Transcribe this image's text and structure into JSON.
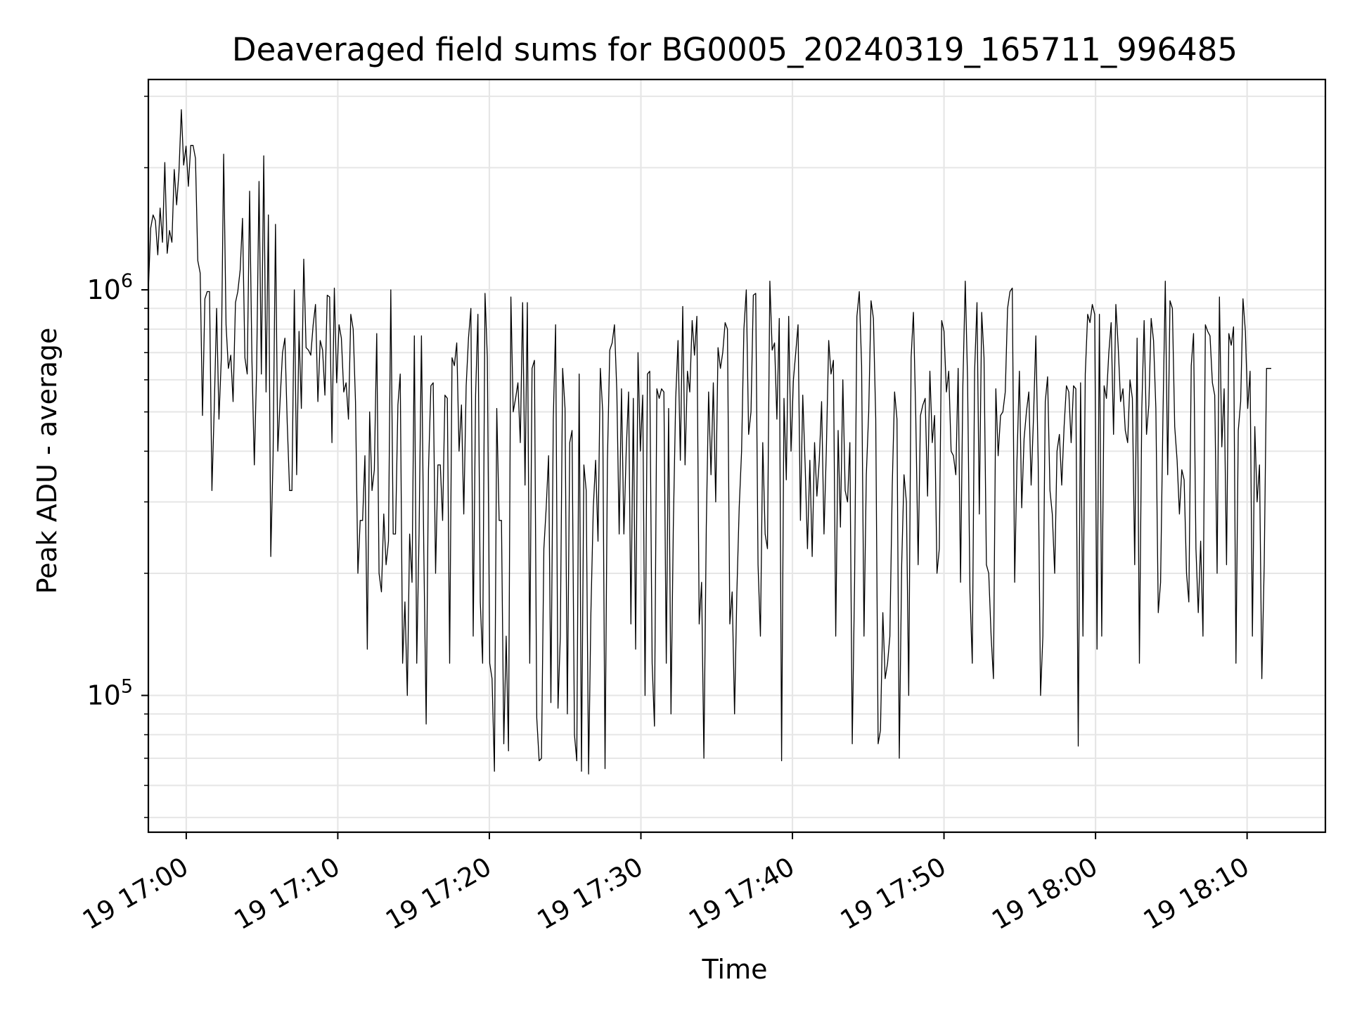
{
  "chart_data": {
    "type": "line",
    "title": "Deaveraged field sums for BG0005_20240319_165711_996485",
    "xlabel": "Time",
    "ylabel": "Peak ADU - average",
    "yscale": "log",
    "ylim": [
      46000,
      3300000
    ],
    "xlim": [
      "19 16:57:30",
      "19 18:15:10"
    ],
    "grid": true,
    "line_color": "#000000",
    "x_ticks": [
      "19 17:00",
      "19 17:10",
      "19 17:20",
      "19 17:30",
      "19 17:40",
      "19 17:50",
      "19 18:00",
      "19 18:10"
    ],
    "y_tick_labels": [
      {
        "base": "10",
        "exp": "5"
      },
      {
        "base": "10",
        "exp": "6"
      }
    ],
    "series": [
      {
        "x_start": "19 16:57:30",
        "x_step_seconds": 9.32,
        "values": [
          1000000,
          1420000,
          1530000,
          1480000,
          1220000,
          1590000,
          1310000,
          2060000,
          1230000,
          1400000,
          1310000,
          1980000,
          1620000,
          1950000,
          2780000,
          2030000,
          2260000,
          1800000,
          2270000,
          2270000,
          2110000,
          1180000,
          1100000,
          490000,
          950000,
          990000,
          990000,
          320000,
          510000,
          900000,
          480000,
          680000,
          2160000,
          820000,
          640000,
          690000,
          530000,
          930000,
          990000,
          1120000,
          1500000,
          680000,
          620000,
          1750000,
          670000,
          370000,
          640000,
          1850000,
          620000,
          2140000,
          560000,
          1530000,
          220000,
          390000,
          1450000,
          400000,
          540000,
          700000,
          760000,
          470000,
          320000,
          320000,
          1000000,
          350000,
          790000,
          510000,
          1190000,
          720000,
          710000,
          690000,
          820000,
          920000,
          530000,
          750000,
          710000,
          550000,
          970000,
          960000,
          420000,
          1010000,
          590000,
          820000,
          760000,
          560000,
          590000,
          480000,
          870000,
          800000,
          530000,
          200000,
          270000,
          270000,
          390000,
          130000,
          500000,
          320000,
          360000,
          780000,
          200000,
          180000,
          280000,
          210000,
          240000,
          1000000,
          250000,
          250000,
          520000,
          620000,
          120000,
          170000,
          100000,
          250000,
          190000,
          770000,
          120000,
          250000,
          770000,
          230000,
          85000,
          360000,
          580000,
          590000,
          200000,
          370000,
          370000,
          270000,
          550000,
          540000,
          120000,
          680000,
          650000,
          740000,
          400000,
          520000,
          280000,
          580000,
          760000,
          900000,
          140000,
          550000,
          870000,
          170000,
          120000,
          980000,
          680000,
          120000,
          110000,
          65000,
          510000,
          270000,
          270000,
          76000,
          140000,
          73000,
          960000,
          500000,
          540000,
          590000,
          420000,
          930000,
          330000,
          930000,
          120000,
          640000,
          670000,
          88000,
          69000,
          70000,
          230000,
          290000,
          390000,
          96000,
          480000,
          820000,
          93000,
          140000,
          640000,
          510000,
          90000,
          420000,
          450000,
          80000,
          69000,
          620000,
          65000,
          370000,
          320000,
          64000,
          160000,
          290000,
          380000,
          240000,
          640000,
          500000,
          66000,
          380000,
          710000,
          740000,
          820000,
          560000,
          250000,
          570000,
          250000,
          400000,
          560000,
          150000,
          540000,
          130000,
          700000,
          400000,
          550000,
          100000,
          620000,
          630000,
          120000,
          84000,
          570000,
          540000,
          570000,
          560000,
          120000,
          510000,
          90000,
          260000,
          540000,
          750000,
          380000,
          910000,
          370000,
          630000,
          560000,
          840000,
          690000,
          860000,
          150000,
          190000,
          70000,
          260000,
          560000,
          350000,
          590000,
          300000,
          720000,
          640000,
          700000,
          830000,
          800000,
          150000,
          180000,
          90000,
          180000,
          290000,
          400000,
          800000,
          1000000,
          440000,
          500000,
          970000,
          980000,
          210000,
          140000,
          420000,
          250000,
          230000,
          1050000,
          710000,
          740000,
          480000,
          850000,
          69000,
          540000,
          340000,
          860000,
          400000,
          600000,
          700000,
          820000,
          270000,
          550000,
          370000,
          230000,
          380000,
          220000,
          420000,
          310000,
          380000,
          530000,
          250000,
          400000,
          750000,
          620000,
          670000,
          140000,
          450000,
          260000,
          600000,
          320000,
          300000,
          420000,
          76000,
          190000,
          860000,
          990000,
          650000,
          140000,
          350000,
          500000,
          940000,
          850000,
          480000,
          76000,
          82000,
          160000,
          110000,
          120000,
          140000,
          330000,
          560000,
          480000,
          70000,
          210000,
          350000,
          300000,
          100000,
          680000,
          880000,
          490000,
          210000,
          490000,
          520000,
          540000,
          310000,
          630000,
          420000,
          490000,
          200000,
          230000,
          840000,
          790000,
          560000,
          630000,
          400000,
          390000,
          350000,
          640000,
          190000,
          580000,
          1050000,
          600000,
          180000,
          120000,
          630000,
          930000,
          280000,
          880000,
          680000,
          210000,
          200000,
          140000,
          110000,
          570000,
          390000,
          490000,
          500000,
          560000,
          900000,
          990000,
          1010000,
          190000,
          380000,
          630000,
          290000,
          430000,
          500000,
          560000,
          330000,
          480000,
          770000,
          380000,
          100000,
          140000,
          530000,
          610000,
          320000,
          280000,
          200000,
          400000,
          440000,
          330000,
          460000,
          580000,
          560000,
          420000,
          580000,
          570000,
          75000,
          590000,
          140000,
          620000,
          870000,
          830000,
          920000,
          870000,
          130000,
          870000,
          140000,
          580000,
          540000,
          700000,
          830000,
          440000,
          920000,
          720000,
          530000,
          570000,
          450000,
          420000,
          600000,
          540000,
          210000,
          760000,
          120000,
          510000,
          840000,
          440000,
          520000,
          850000,
          750000,
          510000,
          160000,
          190000,
          490000,
          1050000,
          350000,
          940000,
          900000,
          460000,
          380000,
          280000,
          360000,
          340000,
          200000,
          170000,
          650000,
          780000,
          230000,
          160000,
          240000,
          140000,
          820000,
          790000,
          770000,
          590000,
          550000,
          200000,
          960000,
          410000,
          570000,
          210000,
          780000,
          730000,
          810000,
          120000,
          450000,
          530000,
          950000,
          790000,
          510000,
          630000,
          140000,
          460000,
          300000,
          370000,
          110000,
          210000,
          640000,
          640000,
          640000
        ]
      }
    ]
  }
}
